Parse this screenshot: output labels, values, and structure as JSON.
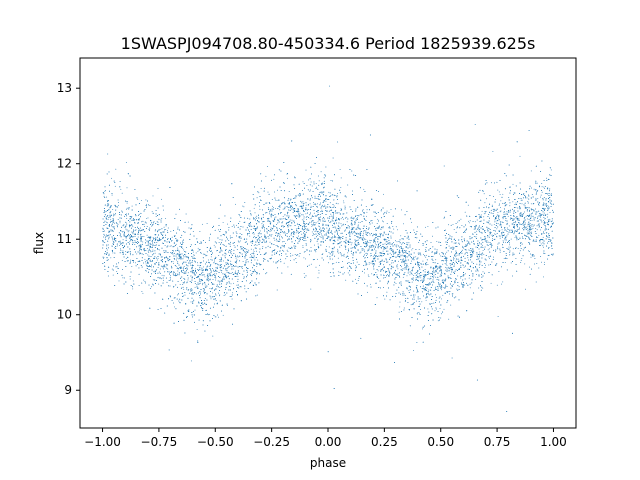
{
  "chart_data": {
    "type": "scatter",
    "title": "1SWASPJ094708.80-450334.6 Period 1825939.625s",
    "xlabel": "phase",
    "ylabel": "flux",
    "xlim": [
      -1.1,
      1.1
    ],
    "ylim": [
      8.5,
      13.4
    ],
    "xticks": [
      -1.0,
      -0.75,
      -0.5,
      -0.25,
      0.0,
      0.25,
      0.5,
      0.75,
      1.0
    ],
    "xtick_labels": [
      "−1.00",
      "−0.75",
      "−0.50",
      "−0.25",
      "0.00",
      "0.25",
      "0.50",
      "0.75",
      "1.00"
    ],
    "yticks": [
      9,
      10,
      11,
      12,
      13
    ],
    "ytick_labels": [
      "9",
      "10",
      "11",
      "12",
      "13"
    ],
    "grid": false,
    "point_color": "#1f77b4",
    "trend": {
      "phase": [
        0.0,
        0.1,
        0.2,
        0.3,
        0.4,
        0.45,
        0.5,
        0.6,
        0.7,
        0.8,
        0.9,
        1.0
      ],
      "flux": [
        11.2,
        11.05,
        10.95,
        10.7,
        10.5,
        10.45,
        10.55,
        10.75,
        11.05,
        11.2,
        11.25,
        11.3
      ]
    },
    "scatter_std": 0.28,
    "n_points_per_half": 5000
  }
}
